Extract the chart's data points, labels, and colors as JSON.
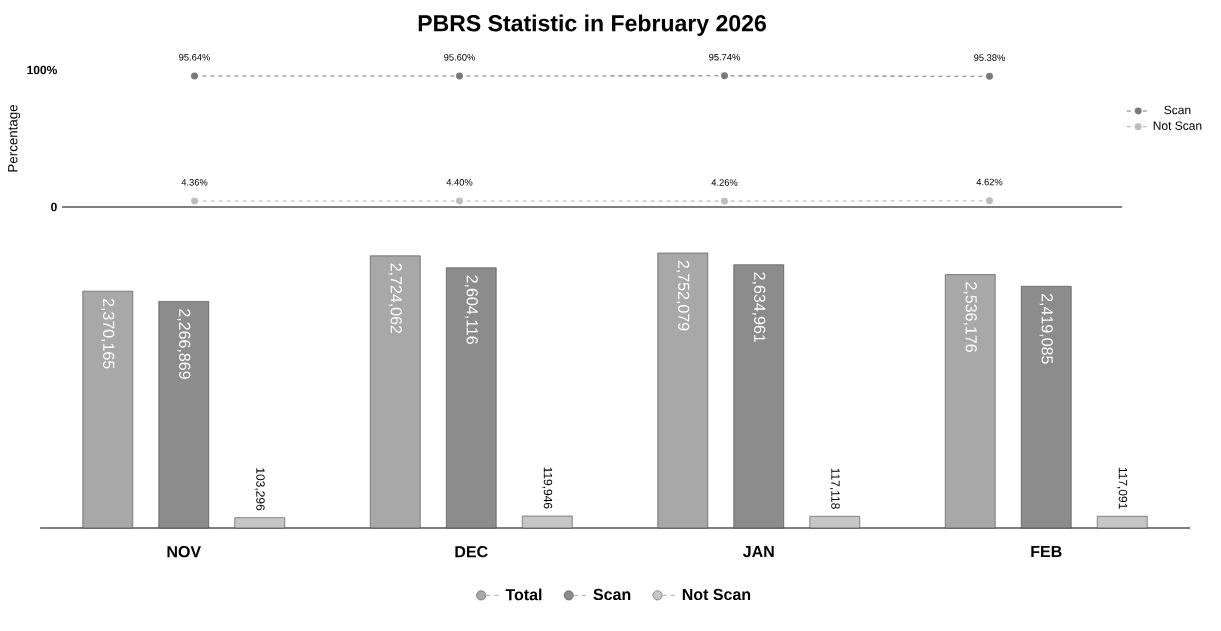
{
  "chart_data": [
    {
      "type": "line",
      "title": "PBRS Statistic in February 2026",
      "ylabel": "Percentage",
      "categories": [
        null,
        null,
        null,
        null
      ],
      "ylim": [
        0,
        100
      ],
      "yticks": [
        0,
        {
          "value": 100,
          "label": "100%"
        }
      ],
      "tick_labels": "y",
      "legend": "right",
      "marker": "circle",
      "line_style": "dashed",
      "series": [
        {
          "name": "Scan",
          "color": "#7a7a7a",
          "values": [
            95.64,
            95.6,
            95.74,
            95.38
          ],
          "value_labels": [
            "95.64%",
            "95.60%",
            "95.74%",
            "95.38%"
          ]
        },
        {
          "name": "Not Scan",
          "color": "#bdbdbd",
          "values": [
            4.36,
            4.4,
            4.26,
            4.62
          ],
          "value_labels": [
            "4.36%",
            "4.40%",
            "4.26%",
            "4.62%"
          ]
        }
      ]
    },
    {
      "type": "bar",
      "categories": [
        "NOV",
        "DEC",
        "JAN",
        "FEB"
      ],
      "legend": "bottom",
      "series": [
        {
          "name": "Total",
          "color": "#a8a8a8",
          "values": [
            2370165,
            2724062,
            2752079,
            2536176
          ],
          "value_labels": [
            "2,370,165",
            "2,724,062",
            "2,752,079",
            "2,536,176"
          ]
        },
        {
          "name": "Scan",
          "color": "#8c8c8c",
          "values": [
            2266869,
            2604116,
            2634961,
            2419085
          ],
          "value_labels": [
            "2,266,869",
            "2,604,116",
            "2,634,961",
            "2,419,085"
          ]
        },
        {
          "name": "Not Scan",
          "color": "#c6c6c6",
          "values": [
            103296,
            119946,
            117118,
            117091
          ],
          "value_labels": [
            "103,296",
            "119,946",
            "117,118",
            "117,091"
          ]
        }
      ]
    }
  ]
}
